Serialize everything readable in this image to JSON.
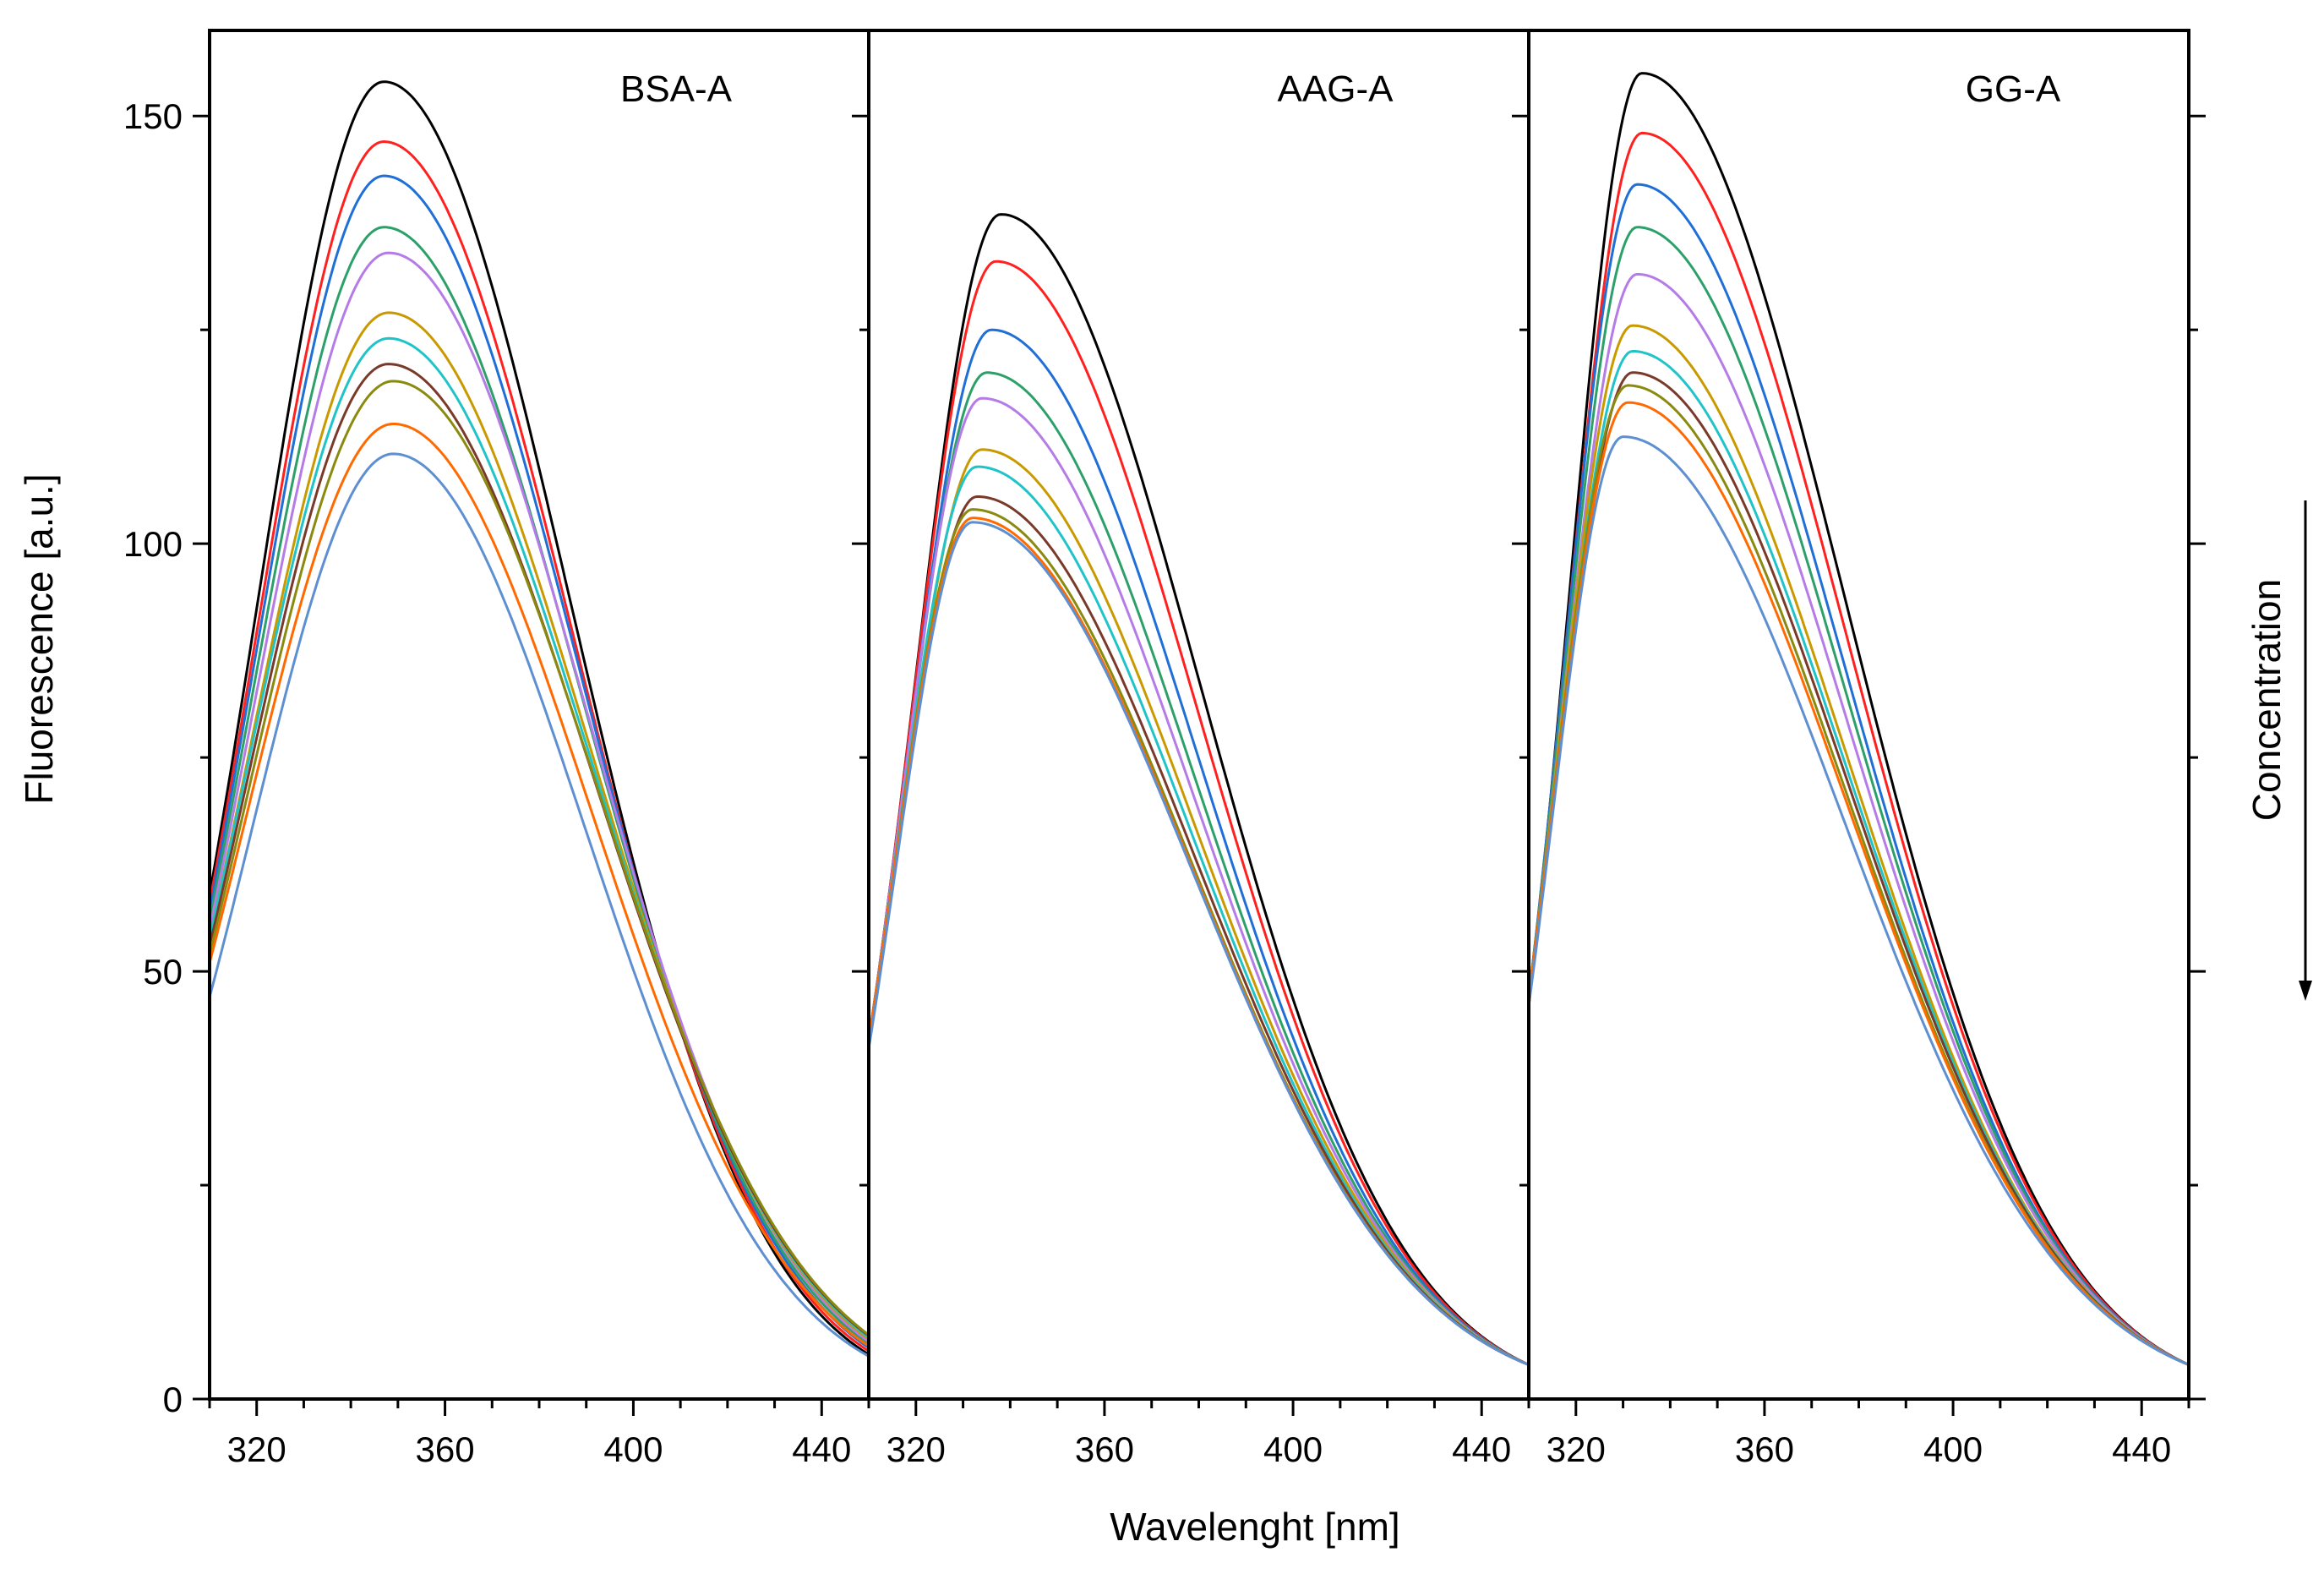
{
  "chart_data": {
    "type": "line",
    "xlabel": "Wavelenght [nm]",
    "ylabel": "Fluorescence [a.u.]",
    "xlim": [
      310,
      450
    ],
    "ylim": [
      0,
      160
    ],
    "x_ticks": [
      320,
      360,
      400,
      440
    ],
    "y_ticks": [
      0,
      50,
      100,
      150
    ],
    "grid": false,
    "annotation": {
      "label": "Concentration",
      "direction": "decreasing"
    },
    "colors": [
      "#000000",
      "#ff2020",
      "#1f6fd6",
      "#2da06a",
      "#b57be6",
      "#c99a00",
      "#20c4c8",
      "#7a3a2a",
      "#8a8a10",
      "#ff6a00",
      "#5e8fd0"
    ],
    "panels": [
      {
        "label": "BSA-A",
        "x": [
          310,
          350,
          450
        ],
        "series": [
          {
            "peak_wavelength": 347,
            "peak": 154,
            "start": 59,
            "end": 5.2
          },
          {
            "peak_wavelength": 347,
            "peak": 147,
            "start": 58,
            "end": 5.6
          },
          {
            "peak_wavelength": 347,
            "peak": 143,
            "start": 57,
            "end": 6.0
          },
          {
            "peak_wavelength": 347,
            "peak": 137,
            "start": 56,
            "end": 6.4
          },
          {
            "peak_wavelength": 348,
            "peak": 134,
            "start": 55,
            "end": 6.7
          },
          {
            "peak_wavelength": 348,
            "peak": 127,
            "start": 54,
            "end": 7.0
          },
          {
            "peak_wavelength": 348,
            "peak": 124,
            "start": 54,
            "end": 7.2
          },
          {
            "peak_wavelength": 348,
            "peak": 121,
            "start": 53,
            "end": 7.4
          },
          {
            "peak_wavelength": 349,
            "peak": 119,
            "start": 52,
            "end": 7.5
          },
          {
            "peak_wavelength": 349,
            "peak": 114,
            "start": 51,
            "end": 6.2
          },
          {
            "peak_wavelength": 349,
            "peak": 110.5,
            "start": 47,
            "end": 5.0
          }
        ]
      },
      {
        "label": "AAG-A",
        "x": [
          310,
          335,
          450
        ],
        "series": [
          {
            "peak_wavelength": 338,
            "peak": 138.5,
            "start": 42,
            "end": 4.0
          },
          {
            "peak_wavelength": 337,
            "peak": 133,
            "start": 42,
            "end": 4.0
          },
          {
            "peak_wavelength": 336,
            "peak": 125,
            "start": 42,
            "end": 4.0
          },
          {
            "peak_wavelength": 335,
            "peak": 120,
            "start": 42,
            "end": 4.0
          },
          {
            "peak_wavelength": 334,
            "peak": 117,
            "start": 42,
            "end": 4.0
          },
          {
            "peak_wavelength": 334,
            "peak": 111,
            "start": 42,
            "end": 4.0
          },
          {
            "peak_wavelength": 333,
            "peak": 109,
            "start": 42,
            "end": 4.0
          },
          {
            "peak_wavelength": 333,
            "peak": 105.5,
            "start": 42,
            "end": 4.0
          },
          {
            "peak_wavelength": 332,
            "peak": 104,
            "start": 42,
            "end": 4.0
          },
          {
            "peak_wavelength": 332,
            "peak": 103,
            "start": 42,
            "end": 4.0
          },
          {
            "peak_wavelength": 332,
            "peak": 102.5,
            "start": 41,
            "end": 4.0
          }
        ]
      },
      {
        "label": "GG-A",
        "x": [
          310,
          332,
          450
        ],
        "series": [
          {
            "peak_wavelength": 334,
            "peak": 155,
            "start": 46,
            "end": 4.0
          },
          {
            "peak_wavelength": 334,
            "peak": 148,
            "start": 47,
            "end": 4.0
          },
          {
            "peak_wavelength": 333,
            "peak": 142,
            "start": 47,
            "end": 4.0
          },
          {
            "peak_wavelength": 333,
            "peak": 137,
            "start": 47,
            "end": 4.0
          },
          {
            "peak_wavelength": 333,
            "peak": 131.5,
            "start": 47,
            "end": 4.0
          },
          {
            "peak_wavelength": 332,
            "peak": 125.5,
            "start": 47,
            "end": 4.0
          },
          {
            "peak_wavelength": 332,
            "peak": 122.5,
            "start": 47,
            "end": 4.0
          },
          {
            "peak_wavelength": 332,
            "peak": 120,
            "start": 47,
            "end": 4.0
          },
          {
            "peak_wavelength": 331,
            "peak": 118.5,
            "start": 47,
            "end": 4.0
          },
          {
            "peak_wavelength": 331,
            "peak": 116.5,
            "start": 47,
            "end": 4.0
          },
          {
            "peak_wavelength": 330,
            "peak": 112.5,
            "start": 46,
            "end": 4.0
          }
        ]
      }
    ]
  }
}
